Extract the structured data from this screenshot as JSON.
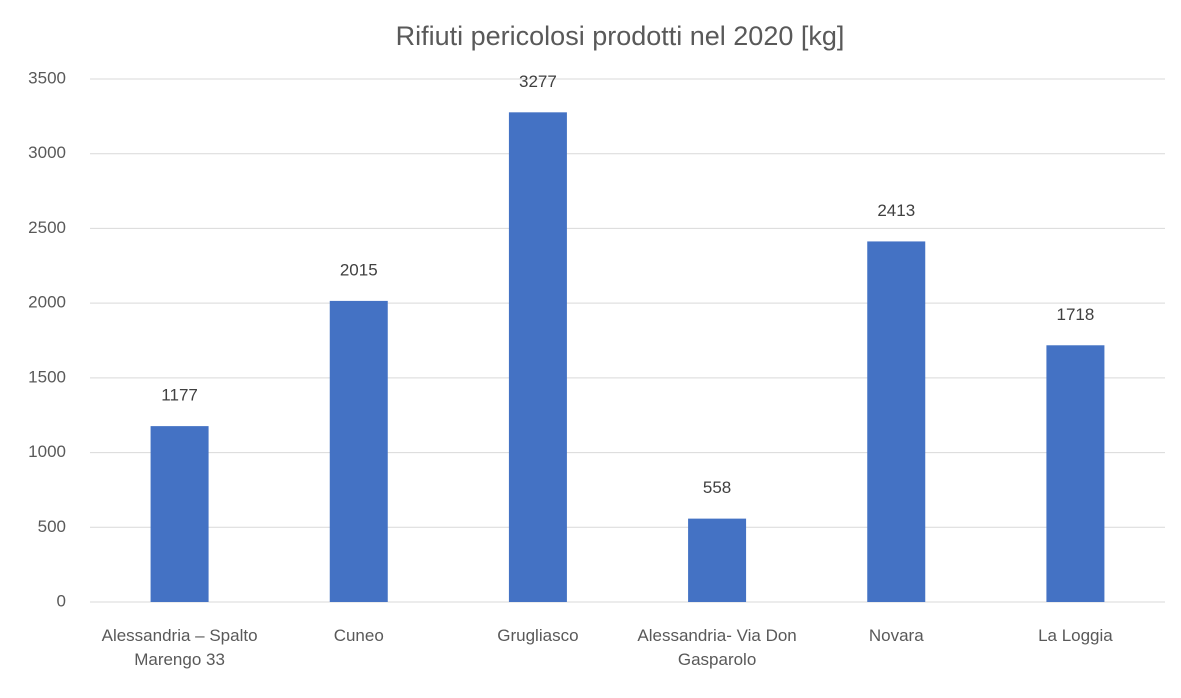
{
  "chart_data": {
    "type": "bar",
    "title": "Rifiuti pericolosi prodotti nel 2020 [kg]",
    "categories": [
      "Alessandria – Spalto Marengo 33",
      "Cuneo",
      "Grugliasco",
      "Alessandria- Via Don Gasparolo",
      "Novara",
      "La Loggia"
    ],
    "values": [
      1177,
      2015,
      3277,
      558,
      2413,
      1718
    ],
    "color": "#4472c4",
    "ylim": [
      0,
      3500
    ],
    "yticks": [
      0,
      500,
      1000,
      1500,
      2000,
      2500,
      3000,
      3500
    ],
    "grid": true
  }
}
